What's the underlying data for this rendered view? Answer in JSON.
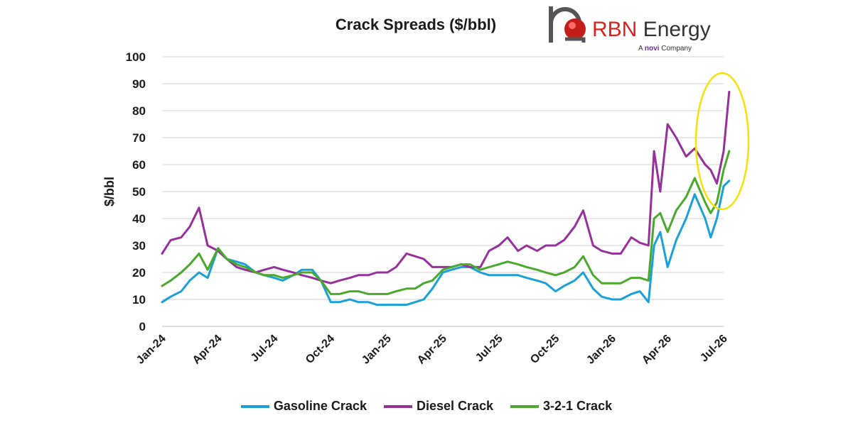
{
  "logo": {
    "name_part1": "RBN",
    "name_part2": " Energy",
    "sub_prefix": "A ",
    "sub_brand": "novi",
    "sub_suffix": " Company"
  },
  "chart_data": {
    "type": "line",
    "title": "Crack Spreads ($/bbl)",
    "ylabel": "$/bbl",
    "xlabel": "",
    "ylim": [
      0,
      100
    ],
    "yticks": [
      0,
      10,
      20,
      30,
      40,
      50,
      60,
      70,
      80,
      90,
      100
    ],
    "xlim": [
      "2024-01",
      "2026-07"
    ],
    "x_tick_labels": [
      "Jan-24",
      "Apr-24",
      "Jul-24",
      "Oct-24",
      "Jan-25",
      "Apr-25",
      "Jul-25",
      "Oct-25",
      "Jan-26",
      "Apr-26",
      "Jul-26"
    ],
    "x_ticks": [
      "2024-01",
      "2024-04",
      "2024-07",
      "2024-10",
      "2025-01",
      "2025-04",
      "2025-07",
      "2025-10",
      "2026-01",
      "2026-04",
      "2026-07"
    ],
    "grid": "horizontal",
    "legend_position": "bottom",
    "annotation": "yellow ellipse highlighting the latest surge",
    "series": [
      {
        "name": "Gasoline Crack",
        "color": "#1aa0d8",
        "points": [
          [
            "2024-01-01",
            9
          ],
          [
            "2024-01-15",
            11
          ],
          [
            "2024-02-01",
            13
          ],
          [
            "2024-02-15",
            17
          ],
          [
            "2024-03-01",
            20
          ],
          [
            "2024-03-15",
            18
          ],
          [
            "2024-04-01",
            29
          ],
          [
            "2024-04-15",
            25
          ],
          [
            "2024-05-01",
            24
          ],
          [
            "2024-05-15",
            23
          ],
          [
            "2024-06-01",
            20
          ],
          [
            "2024-06-15",
            19
          ],
          [
            "2024-07-01",
            18
          ],
          [
            "2024-07-15",
            17
          ],
          [
            "2024-08-01",
            19
          ],
          [
            "2024-08-15",
            21
          ],
          [
            "2024-09-01",
            21
          ],
          [
            "2024-09-15",
            17
          ],
          [
            "2024-10-01",
            9
          ],
          [
            "2024-10-15",
            9
          ],
          [
            "2024-11-01",
            10
          ],
          [
            "2024-11-15",
            9
          ],
          [
            "2024-12-01",
            9
          ],
          [
            "2024-12-15",
            8
          ],
          [
            "2025-01-01",
            8
          ],
          [
            "2025-01-15",
            8
          ],
          [
            "2025-02-01",
            8
          ],
          [
            "2025-02-15",
            9
          ],
          [
            "2025-03-01",
            10
          ],
          [
            "2025-03-15",
            14
          ],
          [
            "2025-04-01",
            20
          ],
          [
            "2025-04-15",
            21
          ],
          [
            "2025-05-01",
            22
          ],
          [
            "2025-05-15",
            22
          ],
          [
            "2025-06-01",
            20
          ],
          [
            "2025-06-15",
            19
          ],
          [
            "2025-07-01",
            19
          ],
          [
            "2025-07-15",
            19
          ],
          [
            "2025-08-01",
            19
          ],
          [
            "2025-08-15",
            18
          ],
          [
            "2025-09-01",
            17
          ],
          [
            "2025-09-15",
            16
          ],
          [
            "2025-10-01",
            13
          ],
          [
            "2025-10-15",
            15
          ],
          [
            "2025-11-01",
            17
          ],
          [
            "2025-11-15",
            20
          ],
          [
            "2025-12-01",
            14
          ],
          [
            "2025-12-15",
            11
          ],
          [
            "2026-01-01",
            10
          ],
          [
            "2026-01-15",
            10
          ],
          [
            "2026-02-01",
            12
          ],
          [
            "2026-02-15",
            13
          ],
          [
            "2026-03-01",
            9
          ],
          [
            "2026-03-10",
            30
          ],
          [
            "2026-03-20",
            35
          ],
          [
            "2026-04-01",
            22
          ],
          [
            "2026-04-15",
            32
          ],
          [
            "2026-05-01",
            40
          ],
          [
            "2026-05-15",
            49
          ],
          [
            "2026-06-01",
            40
          ],
          [
            "2026-06-10",
            33
          ],
          [
            "2026-06-20",
            40
          ],
          [
            "2026-07-01",
            52
          ],
          [
            "2026-07-10",
            54
          ]
        ]
      },
      {
        "name": "Diesel Crack",
        "color": "#96309a",
        "points": [
          [
            "2024-01-01",
            27
          ],
          [
            "2024-01-15",
            32
          ],
          [
            "2024-02-01",
            33
          ],
          [
            "2024-02-15",
            37
          ],
          [
            "2024-03-01",
            44
          ],
          [
            "2024-03-15",
            30
          ],
          [
            "2024-04-01",
            28
          ],
          [
            "2024-04-15",
            25
          ],
          [
            "2024-05-01",
            22
          ],
          [
            "2024-05-15",
            21
          ],
          [
            "2024-06-01",
            20
          ],
          [
            "2024-06-15",
            21
          ],
          [
            "2024-07-01",
            22
          ],
          [
            "2024-07-15",
            21
          ],
          [
            "2024-08-01",
            20
          ],
          [
            "2024-08-15",
            19
          ],
          [
            "2024-09-01",
            18
          ],
          [
            "2024-09-15",
            17
          ],
          [
            "2024-10-01",
            16
          ],
          [
            "2024-10-15",
            17
          ],
          [
            "2024-11-01",
            18
          ],
          [
            "2024-11-15",
            19
          ],
          [
            "2024-12-01",
            19
          ],
          [
            "2024-12-15",
            20
          ],
          [
            "2025-01-01",
            20
          ],
          [
            "2025-01-15",
            22
          ],
          [
            "2025-02-01",
            27
          ],
          [
            "2025-02-15",
            26
          ],
          [
            "2025-03-01",
            25
          ],
          [
            "2025-03-15",
            22
          ],
          [
            "2025-04-01",
            22
          ],
          [
            "2025-04-15",
            22
          ],
          [
            "2025-05-01",
            23
          ],
          [
            "2025-05-15",
            22
          ],
          [
            "2025-06-01",
            22
          ],
          [
            "2025-06-15",
            28
          ],
          [
            "2025-07-01",
            30
          ],
          [
            "2025-07-15",
            33
          ],
          [
            "2025-08-01",
            28
          ],
          [
            "2025-08-15",
            30
          ],
          [
            "2025-09-01",
            28
          ],
          [
            "2025-09-15",
            30
          ],
          [
            "2025-10-01",
            30
          ],
          [
            "2025-10-15",
            32
          ],
          [
            "2025-11-01",
            37
          ],
          [
            "2025-11-15",
            43
          ],
          [
            "2025-12-01",
            30
          ],
          [
            "2025-12-15",
            28
          ],
          [
            "2026-01-01",
            27
          ],
          [
            "2026-01-15",
            27
          ],
          [
            "2026-02-01",
            33
          ],
          [
            "2026-02-15",
            31
          ],
          [
            "2026-03-01",
            30
          ],
          [
            "2026-03-10",
            65
          ],
          [
            "2026-03-20",
            50
          ],
          [
            "2026-04-01",
            75
          ],
          [
            "2026-04-15",
            70
          ],
          [
            "2026-05-01",
            63
          ],
          [
            "2026-05-15",
            66
          ],
          [
            "2026-06-01",
            60
          ],
          [
            "2026-06-10",
            58
          ],
          [
            "2026-06-20",
            53
          ],
          [
            "2026-07-01",
            65
          ],
          [
            "2026-07-10",
            87
          ]
        ]
      },
      {
        "name": "3-2-1 Crack",
        "color": "#4aa82c",
        "points": [
          [
            "2024-01-01",
            15
          ],
          [
            "2024-01-15",
            17
          ],
          [
            "2024-02-01",
            20
          ],
          [
            "2024-02-15",
            23
          ],
          [
            "2024-03-01",
            27
          ],
          [
            "2024-03-15",
            21
          ],
          [
            "2024-04-01",
            29
          ],
          [
            "2024-04-15",
            25
          ],
          [
            "2024-05-01",
            23
          ],
          [
            "2024-05-15",
            22
          ],
          [
            "2024-06-01",
            20
          ],
          [
            "2024-06-15",
            19
          ],
          [
            "2024-07-01",
            19
          ],
          [
            "2024-07-15",
            18
          ],
          [
            "2024-08-01",
            19
          ],
          [
            "2024-08-15",
            20
          ],
          [
            "2024-09-01",
            20
          ],
          [
            "2024-09-15",
            17
          ],
          [
            "2024-10-01",
            12
          ],
          [
            "2024-10-15",
            12
          ],
          [
            "2024-11-01",
            13
          ],
          [
            "2024-11-15",
            13
          ],
          [
            "2024-12-01",
            12
          ],
          [
            "2024-12-15",
            12
          ],
          [
            "2025-01-01",
            12
          ],
          [
            "2025-01-15",
            13
          ],
          [
            "2025-02-01",
            14
          ],
          [
            "2025-02-15",
            14
          ],
          [
            "2025-03-01",
            16
          ],
          [
            "2025-03-15",
            17
          ],
          [
            "2025-04-01",
            21
          ],
          [
            "2025-04-15",
            22
          ],
          [
            "2025-05-01",
            23
          ],
          [
            "2025-05-15",
            23
          ],
          [
            "2025-06-01",
            21
          ],
          [
            "2025-06-15",
            22
          ],
          [
            "2025-07-01",
            23
          ],
          [
            "2025-07-15",
            24
          ],
          [
            "2025-08-01",
            23
          ],
          [
            "2025-08-15",
            22
          ],
          [
            "2025-09-01",
            21
          ],
          [
            "2025-09-15",
            20
          ],
          [
            "2025-10-01",
            19
          ],
          [
            "2025-10-15",
            20
          ],
          [
            "2025-11-01",
            22
          ],
          [
            "2025-11-15",
            26
          ],
          [
            "2025-12-01",
            19
          ],
          [
            "2025-12-15",
            16
          ],
          [
            "2026-01-01",
            16
          ],
          [
            "2026-01-15",
            16
          ],
          [
            "2026-02-01",
            18
          ],
          [
            "2026-02-15",
            18
          ],
          [
            "2026-03-01",
            17
          ],
          [
            "2026-03-10",
            40
          ],
          [
            "2026-03-20",
            42
          ],
          [
            "2026-04-01",
            35
          ],
          [
            "2026-04-15",
            43
          ],
          [
            "2026-05-01",
            48
          ],
          [
            "2026-05-15",
            55
          ],
          [
            "2026-06-01",
            46
          ],
          [
            "2026-06-10",
            42
          ],
          [
            "2026-06-20",
            46
          ],
          [
            "2026-07-01",
            58
          ],
          [
            "2026-07-10",
            65
          ]
        ]
      }
    ]
  }
}
